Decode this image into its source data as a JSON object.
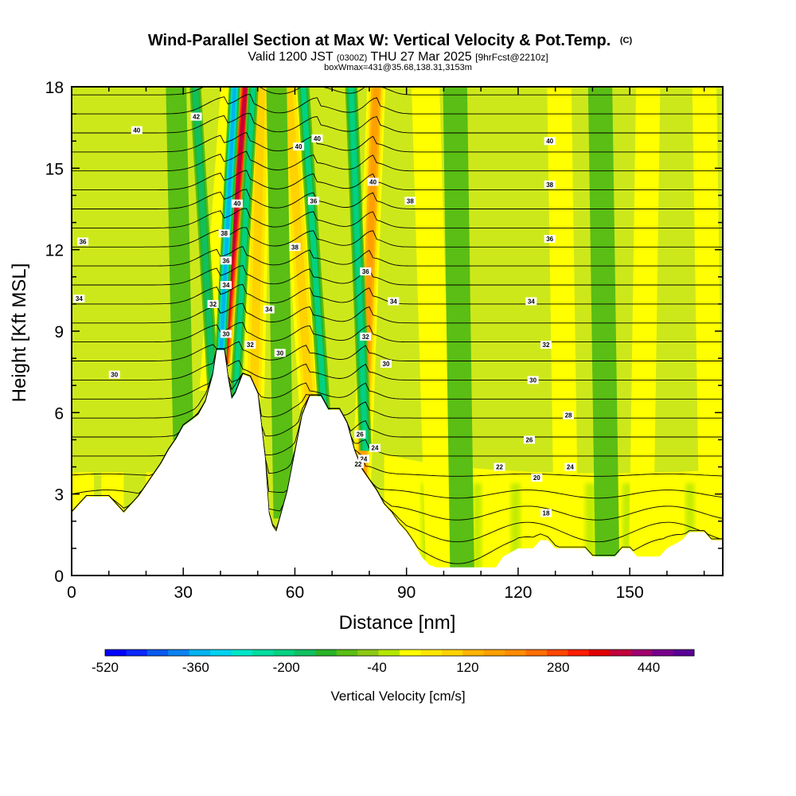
{
  "chart_data": {
    "type": "heatmap",
    "title": "Wind-Parallel Section at Max W: Vertical Velocity & Pot.Temp.",
    "title_suffix": "(C)",
    "subtitle_parts": [
      "Valid 1200 JST ",
      "(0300Z)",
      " THU 27 Mar 2025 ",
      "[9hrFcst@2210z]"
    ],
    "subtitle2": "boxWmax=431@35.68,138.31,3153m",
    "xlabel": "Distance [nm]",
    "ylabel": "Height [Kft MSL]",
    "xlim": [
      0,
      175
    ],
    "ylim": [
      0,
      18
    ],
    "x_ticks": [
      0,
      30,
      60,
      90,
      120,
      150
    ],
    "y_ticks": [
      0,
      3,
      6,
      9,
      12,
      15,
      18
    ],
    "colorbar": {
      "label": "Vertical Velocity [cm/s]",
      "range": [
        -520,
        520
      ],
      "step": 40,
      "tick_values": [
        -520,
        -360,
        -200,
        -40,
        120,
        280,
        440
      ],
      "tick_labels": [
        "-520",
        "-360",
        "-200",
        "-40",
        "120",
        "280",
        "440"
      ],
      "colors": [
        "#0000ff",
        "#0a28ff",
        "#0a5af0",
        "#0a82f0",
        "#00b4f0",
        "#00d2f0",
        "#00e6c8",
        "#00dca0",
        "#00d282",
        "#10c060",
        "#28b428",
        "#5abe14",
        "#8cc814",
        "#b4e600",
        "#ffff00",
        "#ffe600",
        "#ffd200",
        "#ffb400",
        "#ffa000",
        "#ff8c00",
        "#ff6e00",
        "#ff4600",
        "#ff1e00",
        "#e10000",
        "#c3003c",
        "#a0006e",
        "#78008c",
        "#5a0096"
      ]
    },
    "terrain_kft": [
      [
        0,
        2.3
      ],
      [
        2,
        2.6
      ],
      [
        4,
        2.9
      ],
      [
        10,
        2.9
      ],
      [
        12,
        2.6
      ],
      [
        14,
        2.3
      ],
      [
        16,
        2.6
      ],
      [
        18,
        2.9
      ],
      [
        20,
        3.3
      ],
      [
        22,
        3.7
      ],
      [
        24,
        4.1
      ],
      [
        26,
        4.6
      ],
      [
        28,
        5
      ],
      [
        30,
        5.5
      ],
      [
        32,
        5.7
      ],
      [
        34,
        5.9
      ],
      [
        36,
        6.4
      ],
      [
        38,
        7.4
      ],
      [
        39,
        8.3
      ],
      [
        41,
        8.3
      ],
      [
        42,
        7.3
      ],
      [
        43,
        6.5
      ],
      [
        44,
        6.7
      ],
      [
        46,
        7.4
      ],
      [
        48,
        7.3
      ],
      [
        50,
        6.7
      ],
      [
        52,
        4.3
      ],
      [
        53,
        2.3
      ],
      [
        54,
        1.8
      ],
      [
        55,
        1.6
      ],
      [
        56,
        2.1
      ],
      [
        58,
        3.1
      ],
      [
        60,
        4.5
      ],
      [
        62,
        5.9
      ],
      [
        64,
        6.6
      ],
      [
        67,
        6.6
      ],
      [
        69,
        6.1
      ],
      [
        72,
        6.1
      ],
      [
        74,
        5.6
      ],
      [
        76,
        4.6
      ],
      [
        78,
        3.9
      ],
      [
        80,
        3.5
      ],
      [
        82,
        3.1
      ],
      [
        84,
        2.6
      ],
      [
        86,
        2.3
      ],
      [
        88,
        1.9
      ],
      [
        90,
        1.6
      ],
      [
        92,
        1.2
      ],
      [
        94,
        0.7
      ],
      [
        96,
        0.4
      ],
      [
        98,
        0.3
      ],
      [
        114,
        0.3
      ],
      [
        116,
        0.7
      ],
      [
        120,
        1
      ],
      [
        124,
        1
      ],
      [
        126,
        1.3
      ],
      [
        128,
        1.3
      ],
      [
        130,
        1
      ],
      [
        138,
        1
      ],
      [
        140,
        0.7
      ],
      [
        146,
        0.7
      ],
      [
        148,
        1
      ],
      [
        150,
        1
      ],
      [
        152,
        0.7
      ],
      [
        158,
        0.7
      ],
      [
        160,
        1
      ],
      [
        164,
        1.3
      ],
      [
        166,
        1.6
      ],
      [
        170,
        1.6
      ],
      [
        172,
        1.3
      ],
      [
        175,
        1.3
      ]
    ],
    "updraft_axes": [
      {
        "x0": 36,
        "x1": 42,
        "w": 60,
        "width": 1.4
      },
      {
        "x0": 41,
        "x1": 47,
        "w": 470,
        "width": 1.8
      },
      {
        "x0": 49,
        "x1": 51,
        "w": 140,
        "width": 2.5
      },
      {
        "x0": 64,
        "x1": 58,
        "w": 130,
        "width": 2.5
      },
      {
        "x0": 78,
        "x1": 82,
        "w": 220,
        "width": 2.2
      },
      {
        "x0": 99,
        "x1": 95,
        "w": 50,
        "width": 3.5
      },
      {
        "x0": 133,
        "x1": 131,
        "w": 50,
        "width": 3
      },
      {
        "x0": 153,
        "x1": 155,
        "w": 40,
        "width": 3
      },
      {
        "x0": 172,
        "x1": 170,
        "w": 60,
        "width": 3
      }
    ],
    "downdraft_axes": [
      {
        "x0": 38,
        "x1": 33,
        "w": -160,
        "width": 1.3
      },
      {
        "x0": 40,
        "x1": 44,
        "w": -330,
        "width": 1.3
      },
      {
        "x0": 44,
        "x1": 49,
        "w": -170,
        "width": 1.2
      },
      {
        "x0": 68,
        "x1": 62,
        "w": -190,
        "width": 1.4
      },
      {
        "x0": 79,
        "x1": 75,
        "w": -200,
        "width": 1.4
      },
      {
        "x0": 30,
        "x1": 28,
        "w": -60,
        "width": 2.5
      },
      {
        "x0": 57,
        "x1": 55,
        "w": -60,
        "width": 2.5
      },
      {
        "x0": 105,
        "x1": 103,
        "w": -60,
        "width": 3
      },
      {
        "x0": 144,
        "x1": 142,
        "w": -50,
        "width": 3
      }
    ],
    "isentrope_labels": [
      {
        "x": 3,
        "y": 12.3,
        "text": "36"
      },
      {
        "x": 2,
        "y": 10.2,
        "text": "34"
      },
      {
        "x": 11.5,
        "y": 7.4,
        "text": "30"
      },
      {
        "x": 17.5,
        "y": 16.4,
        "text": "40"
      },
      {
        "x": 33.5,
        "y": 16.9,
        "text": "42"
      },
      {
        "x": 44.5,
        "y": 13.7,
        "text": "40"
      },
      {
        "x": 41,
        "y": 12.6,
        "text": "38"
      },
      {
        "x": 41.5,
        "y": 11.6,
        "text": "36"
      },
      {
        "x": 41.5,
        "y": 10.7,
        "text": "34"
      },
      {
        "x": 38,
        "y": 10,
        "text": "32"
      },
      {
        "x": 41.5,
        "y": 8.9,
        "text": "30"
      },
      {
        "x": 48,
        "y": 8.5,
        "text": "32"
      },
      {
        "x": 53,
        "y": 9.8,
        "text": "34"
      },
      {
        "x": 56,
        "y": 8.2,
        "text": "30"
      },
      {
        "x": 60,
        "y": 12.1,
        "text": "38"
      },
      {
        "x": 61,
        "y": 15.8,
        "text": "40"
      },
      {
        "x": 65,
        "y": 13.8,
        "text": "36"
      },
      {
        "x": 66,
        "y": 16.1,
        "text": "40"
      },
      {
        "x": 81,
        "y": 14.5,
        "text": "40"
      },
      {
        "x": 91,
        "y": 13.8,
        "text": "38"
      },
      {
        "x": 79,
        "y": 11.2,
        "text": "36"
      },
      {
        "x": 86.5,
        "y": 10.1,
        "text": "34"
      },
      {
        "x": 79,
        "y": 8.8,
        "text": "32"
      },
      {
        "x": 84.5,
        "y": 7.8,
        "text": "30"
      },
      {
        "x": 77.5,
        "y": 5.2,
        "text": "26"
      },
      {
        "x": 78.5,
        "y": 4.3,
        "text": "24"
      },
      {
        "x": 81.5,
        "y": 4.7,
        "text": "24"
      },
      {
        "x": 77,
        "y": 4.1,
        "text": "22"
      },
      {
        "x": 128.5,
        "y": 16,
        "text": "40"
      },
      {
        "x": 128.5,
        "y": 14.4,
        "text": "38"
      },
      {
        "x": 128.5,
        "y": 12.4,
        "text": "36"
      },
      {
        "x": 123.5,
        "y": 10.1,
        "text": "34"
      },
      {
        "x": 127.5,
        "y": 8.5,
        "text": "32"
      },
      {
        "x": 124,
        "y": 7.2,
        "text": "30"
      },
      {
        "x": 133.5,
        "y": 5.9,
        "text": "28"
      },
      {
        "x": 123,
        "y": 5,
        "text": "26"
      },
      {
        "x": 115,
        "y": 4,
        "text": "22"
      },
      {
        "x": 134,
        "y": 4,
        "text": "24"
      },
      {
        "x": 125,
        "y": 3.6,
        "text": "20"
      },
      {
        "x": 127.5,
        "y": 2.3,
        "text": "18"
      }
    ]
  }
}
